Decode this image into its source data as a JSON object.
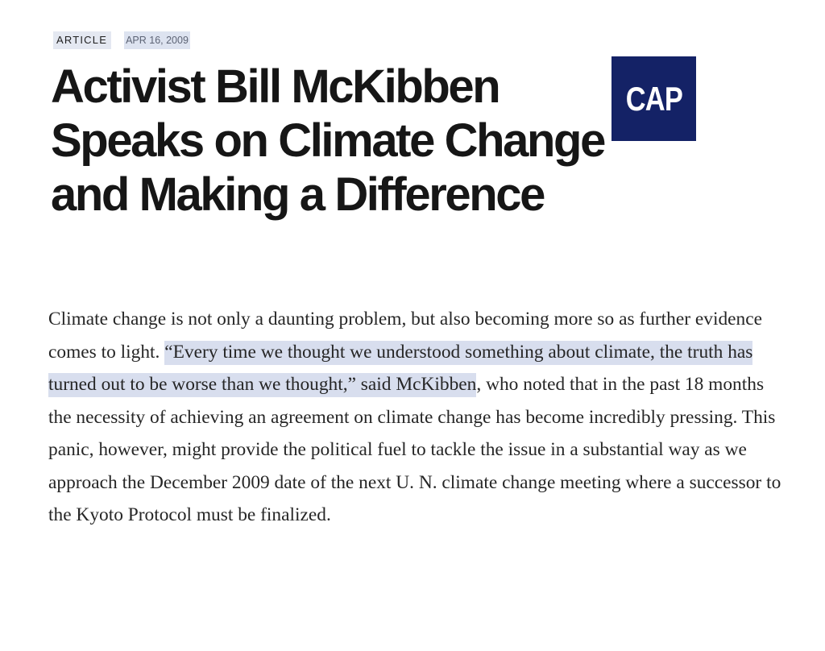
{
  "article": {
    "tag": "ARTICLE",
    "date": "APR 16, 2009",
    "title": "Activist Bill McKibben Speaks on Climate Change and Making a Difference",
    "logo_text": "CAP",
    "paragraph_intro": "Climate change is not only a daunting problem, but also becoming more so as further evidence comes to light. ",
    "paragraph_quote": "“Every time we thought we understood something about climate, the truth has turned out to be worse than we thought,” said McKibben",
    "paragraph_rest": ", who noted that in the past 18 months the necessity of achieving an agreement on climate change has become incredibly pressing. This panic, however, might provide the political fuel to tackle the issue in a substantial way as we approach the December 2009 date of the next U. N. climate change meeting where a successor to the Kyoto Protocol must be finalized."
  },
  "colors": {
    "logo_background": "#142266",
    "highlight": "#d8deee",
    "tag_background": "#e4e8f1"
  }
}
